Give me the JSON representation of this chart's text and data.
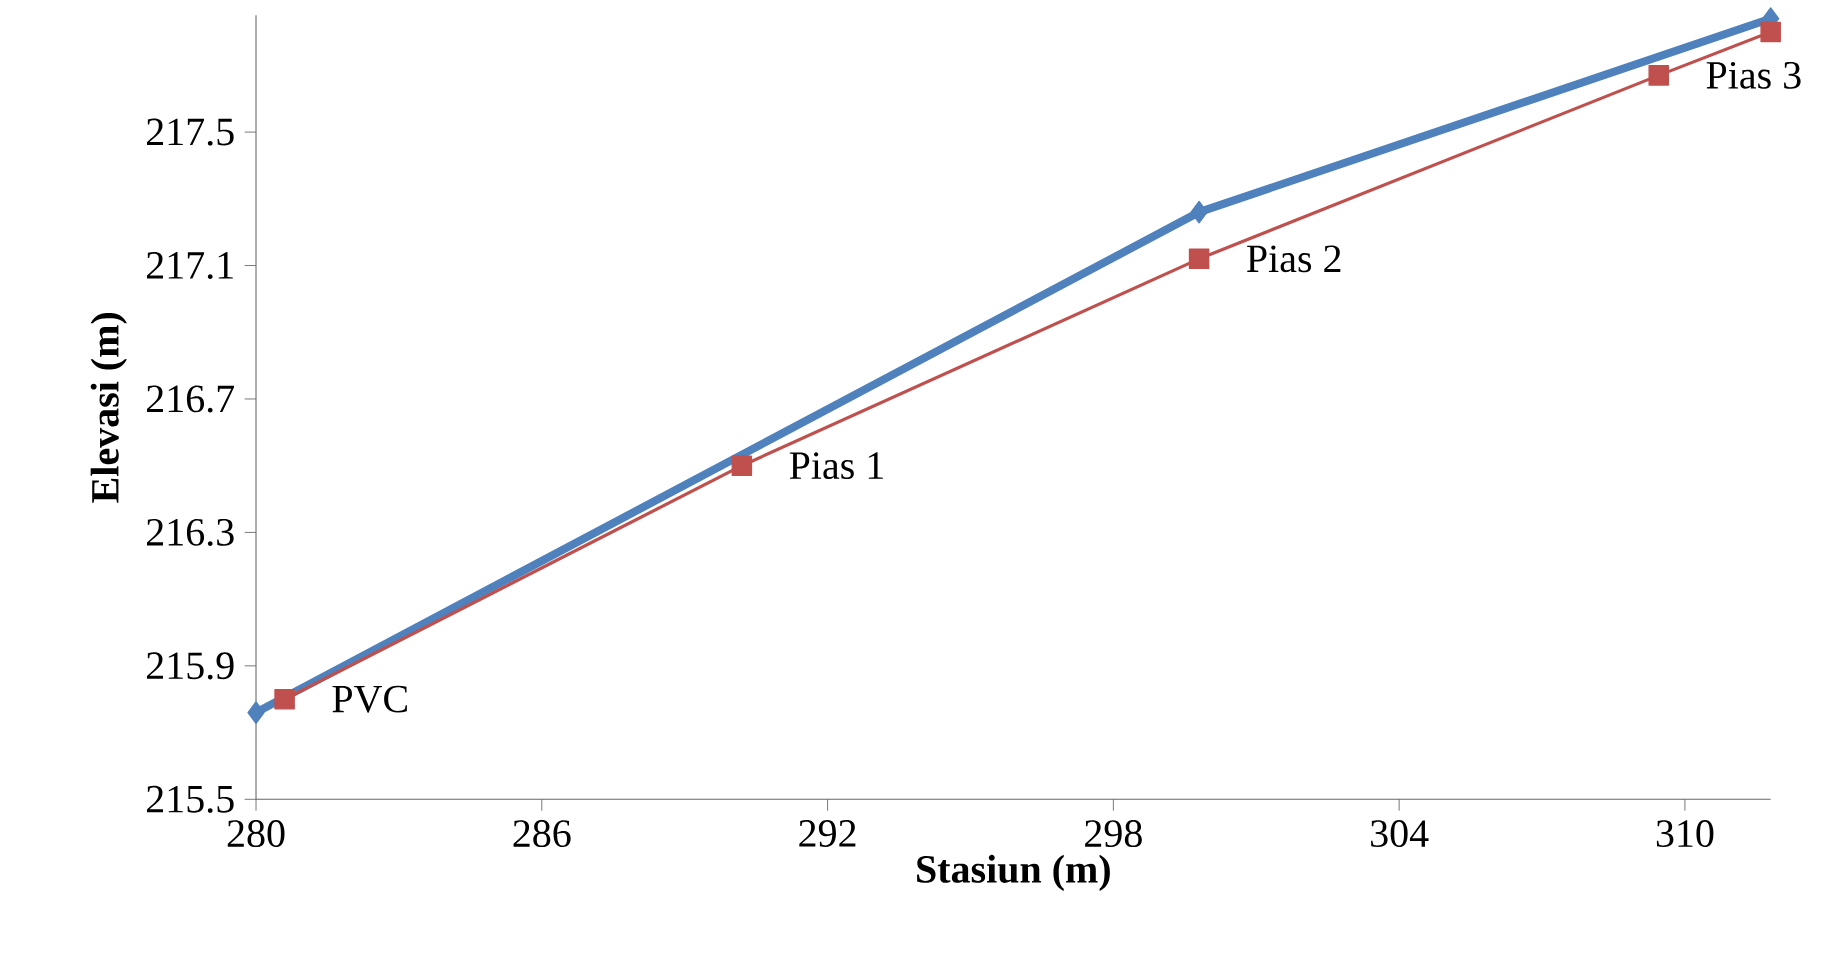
{
  "chart_data": {
    "type": "line",
    "xlabel": "Stasiun (m)",
    "ylabel": "Elevasi (m)",
    "xlim": [
      280,
      311.8
    ],
    "ylim": [
      215.5,
      217.85
    ],
    "xticks": [
      280,
      286,
      292,
      298,
      304,
      310
    ],
    "yticks": [
      {
        "value": 215.5,
        "label": "215.5"
      },
      {
        "value": 215.9,
        "label": "215.9"
      },
      {
        "value": 216.3,
        "label": "216.3"
      },
      {
        "value": 216.7,
        "label": "216.7"
      },
      {
        "value": 217.1,
        "label": "217.1"
      },
      {
        "value": 217.5,
        "label": "217.5"
      }
    ],
    "grid": false,
    "series": [
      {
        "color": "#4f81bd",
        "marker": "diamond",
        "x": [
          280,
          299.8,
          311.8
        ],
        "values": [
          215.76,
          217.26,
          217.84
        ]
      },
      {
        "color": "#c0504d",
        "marker": "square",
        "x": [
          280.6,
          290.2,
          299.8,
          309.45,
          311.8
        ],
        "values": [
          215.8,
          216.5,
          217.12,
          217.67,
          217.8
        ]
      }
    ],
    "annotations": [
      {
        "text": "PVC",
        "x": 280.6,
        "y": 215.8
      },
      {
        "text": "Pias 1",
        "x": 290.2,
        "y": 216.5
      },
      {
        "text": "Pias 2",
        "x": 299.8,
        "y": 217.12
      },
      {
        "text": "Pias 3",
        "x": 309.45,
        "y": 217.67
      }
    ]
  }
}
